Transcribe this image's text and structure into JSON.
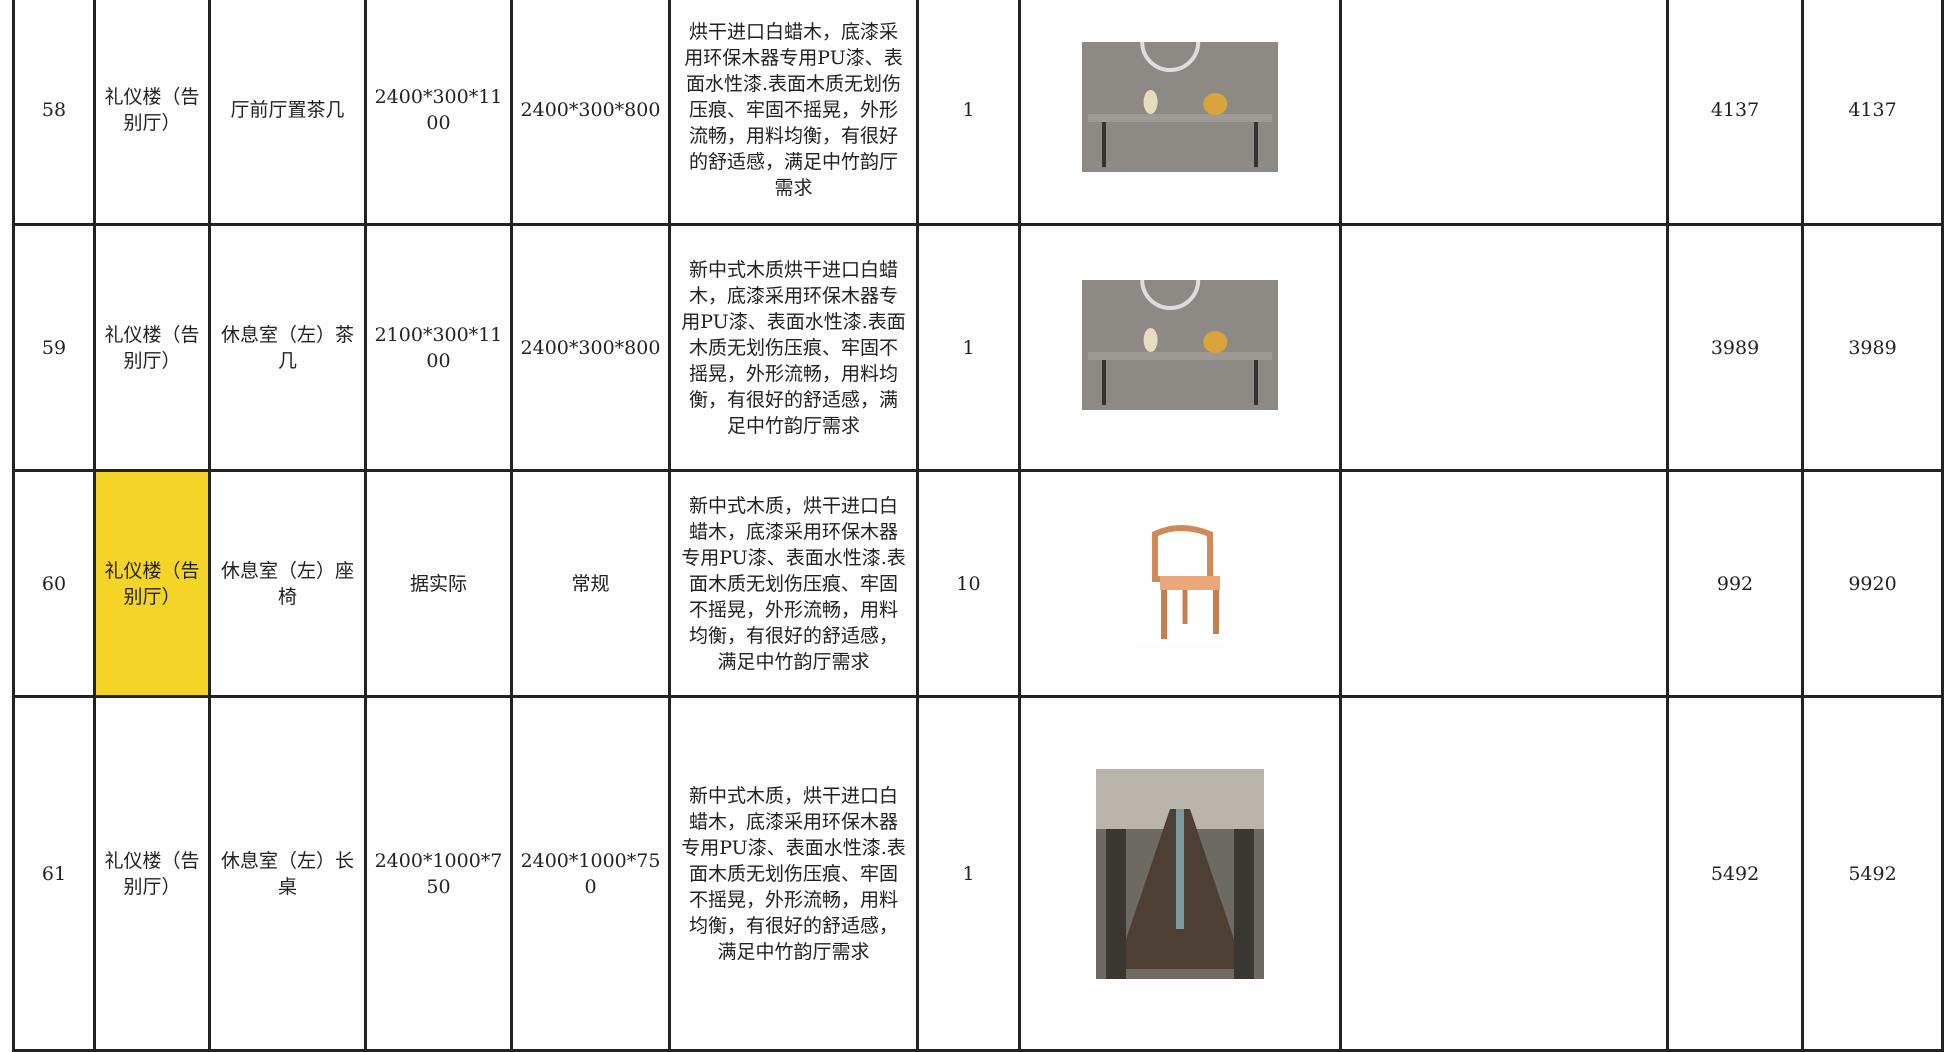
{
  "table": {
    "rows": [
      {
        "no": 58,
        "location": "礼仪楼（告别厅）",
        "name": "厅前厅置茶几",
        "design_size": "2400*300*1100",
        "actual_size": "2400*300*800",
        "description": "烘干进口白蜡木，底漆采用环保木器专用PU漆、表面水性漆.表面木质无划伤压痕、牢固不摇晃，外形流畅，用料均衡，有很好的舒适感，满足中竹韵厅需求",
        "qty": 1,
        "unit_price": 4137,
        "total": 4137
      },
      {
        "no": 59,
        "location": "礼仪楼（告别厅）",
        "name": "休息室（左）茶几",
        "design_size": "2100*300*1100",
        "actual_size": "2400*300*800",
        "description": "新中式木质烘干进口白蜡木，底漆采用环保木器专用PU漆、表面水性漆.表面木质无划伤压痕、牢固不摇晃，外形流畅，用料均衡，有很好的舒适感，满足中竹韵厅需求",
        "qty": 1,
        "unit_price": 3989,
        "total": 3989
      },
      {
        "no": 60,
        "location": "礼仪楼（告别厅）",
        "name": "休息室（左）座椅",
        "design_size": "据实际",
        "actual_size": "常规",
        "description": "新中式木质，烘干进口白蜡木，底漆采用环保木器专用PU漆、表面水性漆.表面木质无划伤压痕、牢固不摇晃，外形流畅，用料均衡，有很好的舒适感，满足中竹韵厅需求",
        "qty": 10,
        "unit_price": 992,
        "total": 9920
      },
      {
        "no": 61,
        "location": "礼仪楼（告别厅）",
        "name": "休息室（左）长桌",
        "design_size": "2400*1000*750",
        "actual_size": "2400*1000*750",
        "description": "新中式木质，烘干进口白蜡木，底漆采用环保木器专用PU漆、表面水性漆.表面木质无划伤压痕、牢固不摇晃，外形流畅，用料均衡，有很好的舒适感，满足中竹韵厅需求",
        "qty": 1,
        "unit_price": 5492,
        "total": 5492
      }
    ]
  }
}
